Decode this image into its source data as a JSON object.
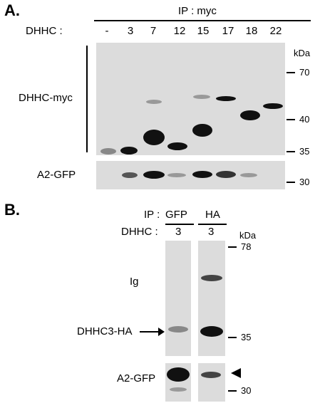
{
  "panel_a": {
    "letter": "A.",
    "ip_label": "IP : myc",
    "dhhc_label": "DHHC :",
    "lanes": [
      "-",
      "3",
      "7",
      "12",
      "15",
      "17",
      "18",
      "22"
    ],
    "blot_top_label": "DHHC-myc",
    "blot_bottom_label": "A2-GFP",
    "kda_label": "kDa",
    "markers": [
      "70",
      "40",
      "35",
      "30"
    ]
  },
  "panel_b": {
    "letter": "B.",
    "ip_label": "IP :",
    "ip_gfp": "GFP",
    "ip_ha": "HA",
    "dhhc_label": "DHHC :",
    "lane_gfp": "3",
    "lane_ha": "3",
    "kda_label": "kDa",
    "markers": [
      "78",
      "35",
      "30"
    ],
    "ig_label": "Ig",
    "dhhc3_label": "DHHC3-HA",
    "a2_label": "A2-GFP"
  }
}
